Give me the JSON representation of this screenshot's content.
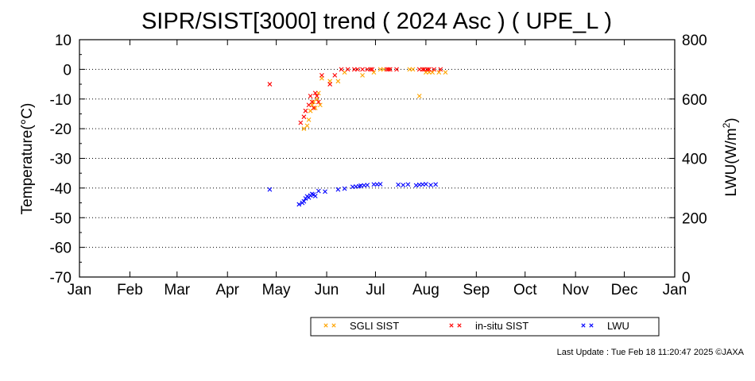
{
  "chart_data": {
    "type": "scatter",
    "title": "SIPR/SIST[3000] trend ( 2024 Asc ) ( UPE_L )",
    "ylabel_left": "Temperature(°C)",
    "ylabel_right_main": "LWU(W/m",
    "ylabel_right_sup": "2",
    "ylabel_right_end": ")",
    "ylim_left": [
      -70,
      10
    ],
    "ylim_right": [
      0,
      800
    ],
    "yticks_left": [
      10,
      0,
      -10,
      -20,
      -30,
      -40,
      -50,
      -60,
      -70
    ],
    "yticks_right": [
      800,
      600,
      400,
      200,
      0
    ],
    "x_range_doy": [
      1,
      366
    ],
    "month_ticks": [
      {
        "label": "Jan",
        "doy": 1
      },
      {
        "label": "Feb",
        "doy": 32
      },
      {
        "label": "Mar",
        "doy": 61
      },
      {
        "label": "Apr",
        "doy": 92
      },
      {
        "label": "May",
        "doy": 122
      },
      {
        "label": "Jun",
        "doy": 153
      },
      {
        "label": "Jul",
        "doy": 183
      },
      {
        "label": "Aug",
        "doy": 214
      },
      {
        "label": "Sep",
        "doy": 245
      },
      {
        "label": "Oct",
        "doy": 275
      },
      {
        "label": "Nov",
        "doy": 306
      },
      {
        "label": "Dec",
        "doy": 336
      },
      {
        "label": "Jan",
        "doy": 367
      }
    ],
    "grid": "horizontal dotted",
    "legend_position": "bottom",
    "series": [
      {
        "name": "SGLI SIST",
        "axis": "left",
        "color": "#ffa500",
        "points": [
          [
            139,
            -20
          ],
          [
            141,
            -19
          ],
          [
            142,
            -17
          ],
          [
            143,
            -14
          ],
          [
            144,
            -12
          ],
          [
            145,
            -11
          ],
          [
            146,
            -13
          ],
          [
            147,
            -10
          ],
          [
            148,
            -8
          ],
          [
            149,
            -12
          ],
          [
            150,
            -3
          ],
          [
            155,
            -4
          ],
          [
            160,
            -4
          ],
          [
            164,
            -1
          ],
          [
            175,
            -2
          ],
          [
            182,
            -1
          ],
          [
            186,
            0
          ],
          [
            188,
            0
          ],
          [
            204,
            0
          ],
          [
            206,
            0
          ],
          [
            210,
            -9
          ],
          [
            212,
            0
          ],
          [
            214,
            -1
          ],
          [
            216,
            -1
          ],
          [
            218,
            -1
          ],
          [
            222,
            -1
          ],
          [
            226,
            -1
          ]
        ]
      },
      {
        "name": "in-situ SIST",
        "axis": "left",
        "color": "#ff0000",
        "points": [
          [
            118,
            -5
          ],
          [
            137,
            -18
          ],
          [
            139,
            -16
          ],
          [
            140,
            -14
          ],
          [
            142,
            -12
          ],
          [
            143,
            -9
          ],
          [
            144,
            -11
          ],
          [
            145,
            -13
          ],
          [
            146,
            -8
          ],
          [
            147,
            -9
          ],
          [
            148,
            -11
          ],
          [
            150,
            -2
          ],
          [
            155,
            -5
          ],
          [
            158,
            -2
          ],
          [
            162,
            0
          ],
          [
            166,
            0
          ],
          [
            170,
            0
          ],
          [
            172,
            0
          ],
          [
            175,
            0
          ],
          [
            178,
            0
          ],
          [
            180,
            0
          ],
          [
            181,
            0
          ],
          [
            190,
            0
          ],
          [
            191,
            0
          ],
          [
            192,
            0
          ],
          [
            196,
            0
          ],
          [
            210,
            0
          ],
          [
            212,
            0
          ],
          [
            213,
            0
          ],
          [
            215,
            0
          ],
          [
            216,
            0
          ],
          [
            219,
            0
          ],
          [
            223,
            0
          ]
        ]
      },
      {
        "name": "LWU",
        "axis": "right",
        "color": "#0000ff",
        "points": [
          [
            118,
            295
          ],
          [
            136,
            245
          ],
          [
            138,
            250
          ],
          [
            139,
            255
          ],
          [
            140,
            265
          ],
          [
            141,
            272
          ],
          [
            142,
            268
          ],
          [
            143,
            275
          ],
          [
            144,
            280
          ],
          [
            145,
            278
          ],
          [
            146,
            273
          ],
          [
            148,
            290
          ],
          [
            152,
            288
          ],
          [
            160,
            295
          ],
          [
            164,
            298
          ],
          [
            169,
            304
          ],
          [
            171,
            305
          ],
          [
            173,
            306
          ],
          [
            174,
            308
          ],
          [
            176,
            309
          ],
          [
            178,
            310
          ],
          [
            182,
            312
          ],
          [
            184,
            312
          ],
          [
            186,
            313
          ],
          [
            197,
            311
          ],
          [
            200,
            310
          ],
          [
            203,
            312
          ],
          [
            208,
            309
          ],
          [
            210,
            311
          ],
          [
            212,
            312
          ],
          [
            214,
            313
          ],
          [
            217,
            310
          ],
          [
            220,
            312
          ]
        ]
      }
    ]
  },
  "legend": {
    "items": [
      {
        "label": "SGLI SIST",
        "color": "#ffa500"
      },
      {
        "label": "in-situ SIST",
        "color": "#ff0000"
      },
      {
        "label": "LWU",
        "color": "#0000ff"
      }
    ]
  },
  "footer": {
    "last_update": "Last Update : Tue Feb 18 11:20:47 2025  ©JAXA"
  }
}
